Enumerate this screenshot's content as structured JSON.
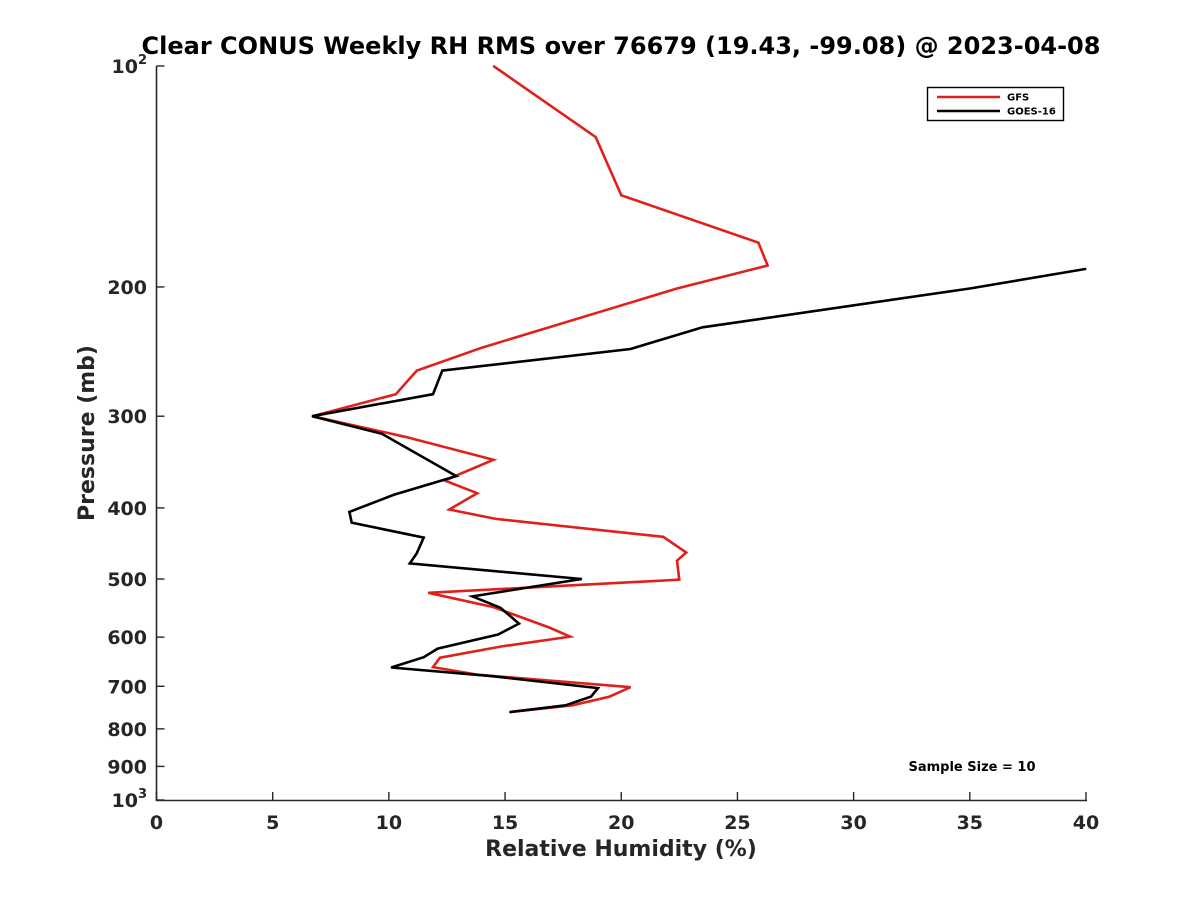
{
  "chart_data": {
    "type": "line",
    "title": "Clear CONUS Weekly RH RMS over 76679 (19.43, -99.08) @ 2023-04-08",
    "xlabel": "Relative Humidity (%)",
    "ylabel": "Pressure (mb)",
    "xlim": [
      0,
      40
    ],
    "ylim": [
      100,
      1000
    ],
    "y_scale": "log",
    "y_reversed": true,
    "grid": false,
    "legend_position": "top-right",
    "x_ticks": [
      {
        "value": 0,
        "label": "0"
      },
      {
        "value": 5,
        "label": "5"
      },
      {
        "value": 10,
        "label": "10"
      },
      {
        "value": 15,
        "label": "15"
      },
      {
        "value": 20,
        "label": "20"
      },
      {
        "value": 25,
        "label": "25"
      },
      {
        "value": 30,
        "label": "30"
      },
      {
        "value": 35,
        "label": "35"
      },
      {
        "value": 40,
        "label": "40"
      }
    ],
    "y_ticks": [
      {
        "value": 100,
        "label": "10",
        "sup": "2"
      },
      {
        "value": 200,
        "label": "200",
        "sup": ""
      },
      {
        "value": 300,
        "label": "300",
        "sup": ""
      },
      {
        "value": 400,
        "label": "400",
        "sup": ""
      },
      {
        "value": 500,
        "label": "500",
        "sup": ""
      },
      {
        "value": 600,
        "label": "600",
        "sup": ""
      },
      {
        "value": 700,
        "label": "700",
        "sup": ""
      },
      {
        "value": 800,
        "label": "800",
        "sup": ""
      },
      {
        "value": 900,
        "label": "900",
        "sup": ""
      },
      {
        "value": 1000,
        "label": "10",
        "sup": "3"
      }
    ],
    "series": [
      {
        "name": "GFS",
        "color": "#e0211b",
        "points": [
          {
            "x": 14.5,
            "y": 100
          },
          {
            "x": 18.9,
            "y": 125
          },
          {
            "x": 20.0,
            "y": 150
          },
          {
            "x": 25.9,
            "y": 174
          },
          {
            "x": 26.3,
            "y": 187
          },
          {
            "x": 22.4,
            "y": 201
          },
          {
            "x": 14.0,
            "y": 242
          },
          {
            "x": 11.2,
            "y": 260
          },
          {
            "x": 10.3,
            "y": 280
          },
          {
            "x": 6.7,
            "y": 300
          },
          {
            "x": 10.7,
            "y": 320
          },
          {
            "x": 14.5,
            "y": 344
          },
          {
            "x": 12.4,
            "y": 367
          },
          {
            "x": 13.8,
            "y": 382
          },
          {
            "x": 12.6,
            "y": 402
          },
          {
            "x": 14.6,
            "y": 414
          },
          {
            "x": 21.8,
            "y": 438
          },
          {
            "x": 22.8,
            "y": 460
          },
          {
            "x": 22.4,
            "y": 472
          },
          {
            "x": 22.5,
            "y": 501
          },
          {
            "x": 11.7,
            "y": 522
          },
          {
            "x": 14.5,
            "y": 546
          },
          {
            "x": 16.9,
            "y": 582
          },
          {
            "x": 17.8,
            "y": 599
          },
          {
            "x": 14.8,
            "y": 618
          },
          {
            "x": 12.2,
            "y": 640
          },
          {
            "x": 11.9,
            "y": 659
          },
          {
            "x": 13.8,
            "y": 675
          },
          {
            "x": 20.4,
            "y": 702
          },
          {
            "x": 19.5,
            "y": 723
          },
          {
            "x": 17.9,
            "y": 743
          },
          {
            "x": 15.2,
            "y": 759
          }
        ]
      },
      {
        "name": "GOES-16",
        "color": "#000000",
        "points": [
          {
            "x": 40.0,
            "y": 189
          },
          {
            "x": 35.0,
            "y": 201
          },
          {
            "x": 23.5,
            "y": 227
          },
          {
            "x": 20.4,
            "y": 243
          },
          {
            "x": 12.3,
            "y": 260
          },
          {
            "x": 11.9,
            "y": 280
          },
          {
            "x": 6.7,
            "y": 300
          },
          {
            "x": 9.7,
            "y": 317
          },
          {
            "x": 12.9,
            "y": 362
          },
          {
            "x": 10.2,
            "y": 384
          },
          {
            "x": 8.3,
            "y": 405
          },
          {
            "x": 8.4,
            "y": 419
          },
          {
            "x": 11.5,
            "y": 439
          },
          {
            "x": 11.2,
            "y": 461
          },
          {
            "x": 10.9,
            "y": 476
          },
          {
            "x": 18.3,
            "y": 500
          },
          {
            "x": 13.6,
            "y": 528
          },
          {
            "x": 14.8,
            "y": 547
          },
          {
            "x": 15.6,
            "y": 575
          },
          {
            "x": 14.7,
            "y": 595
          },
          {
            "x": 12.1,
            "y": 622
          },
          {
            "x": 11.5,
            "y": 639
          },
          {
            "x": 10.1,
            "y": 660
          },
          {
            "x": 14.4,
            "y": 678
          },
          {
            "x": 19.0,
            "y": 704
          },
          {
            "x": 18.7,
            "y": 723
          },
          {
            "x": 17.6,
            "y": 743
          },
          {
            "x": 15.2,
            "y": 759
          }
        ]
      }
    ],
    "annotations": [
      {
        "text": "Sample Size = 10",
        "position": "bottom-right"
      }
    ]
  }
}
